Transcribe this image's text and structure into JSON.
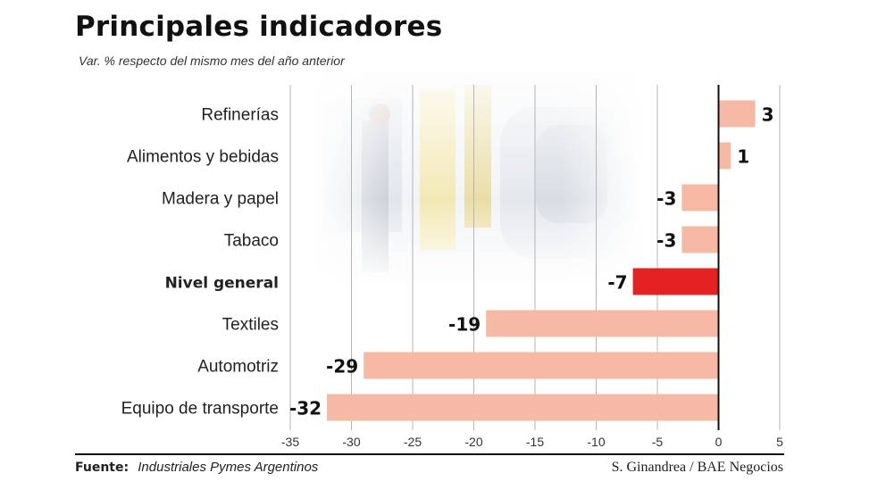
{
  "title": "Principales indicadores",
  "subtitle": "Var. % respecto del mismo mes del año anterior",
  "footer": {
    "label": "Fuente:",
    "source": "Industriales Pymes Argentinos",
    "credit": "S. Ginandrea / BAE Negocios"
  },
  "colors": {
    "bar": "#f6b9a6",
    "highlight": "#e42123",
    "text": "#1a1a1a"
  },
  "chart_data": {
    "type": "bar",
    "orientation": "horizontal",
    "categories": [
      "Refinerías",
      "Alimentos y bebidas",
      "Madera y papel",
      "Tabaco",
      "Nivel general",
      "Textiles",
      "Automotriz",
      "Equipo de transporte"
    ],
    "values": [
      3,
      1,
      -3,
      -3,
      -7,
      -19,
      -29,
      -32
    ],
    "value_labels": [
      "3",
      "1",
      "-3",
      "-3",
      "-7",
      "-19",
      "-29",
      "-32"
    ],
    "highlight_category": "Nivel general",
    "xlim": [
      -35,
      5
    ],
    "x_ticks": [
      -35,
      -30,
      -25,
      -20,
      -15,
      -10,
      -5,
      0,
      5
    ],
    "x_tick_labels": [
      "-35",
      "-30",
      "-25",
      "-20",
      "-15",
      "-10",
      "-5",
      "0",
      "5"
    ],
    "grid": "vertical",
    "xlabel": "",
    "ylabel": ""
  }
}
